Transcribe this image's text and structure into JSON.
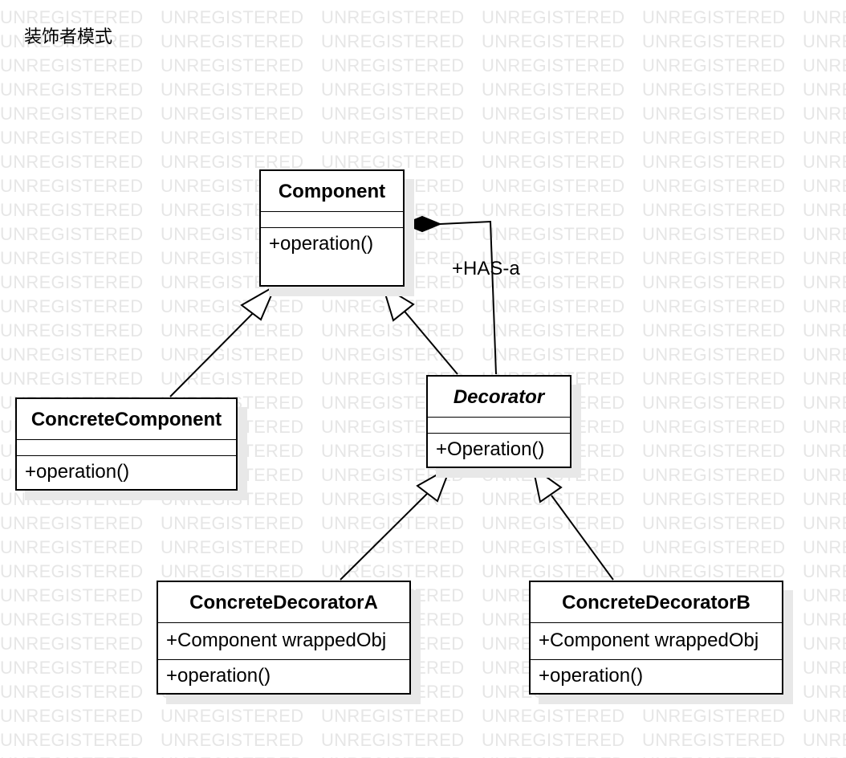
{
  "title": "装饰者模式",
  "watermark": "UNREGISTERED",
  "association_label": "+HAS-a",
  "classes": {
    "component": {
      "name": "Component",
      "attributes": "",
      "operations": "+operation()"
    },
    "concrete_component": {
      "name": "ConcreteComponent",
      "attributes": "",
      "operations": "+operation()"
    },
    "decorator": {
      "name": "Decorator",
      "attributes": "",
      "operations": "+Operation()"
    },
    "concrete_decorator_a": {
      "name": "ConcreteDecoratorA",
      "attributes": "+Component wrappedObj",
      "operations": "+operation()"
    },
    "concrete_decorator_b": {
      "name": "ConcreteDecoratorB",
      "attributes": "+Component wrappedObj",
      "operations": "+operation()"
    }
  },
  "relationships": [
    {
      "from": "concrete_component",
      "to": "component",
      "type": "generalization"
    },
    {
      "from": "decorator",
      "to": "component",
      "type": "generalization"
    },
    {
      "from": "concrete_decorator_a",
      "to": "decorator",
      "type": "generalization"
    },
    {
      "from": "concrete_decorator_b",
      "to": "decorator",
      "type": "generalization"
    },
    {
      "from": "decorator",
      "to": "component",
      "type": "composition",
      "label": "+HAS-a"
    }
  ]
}
